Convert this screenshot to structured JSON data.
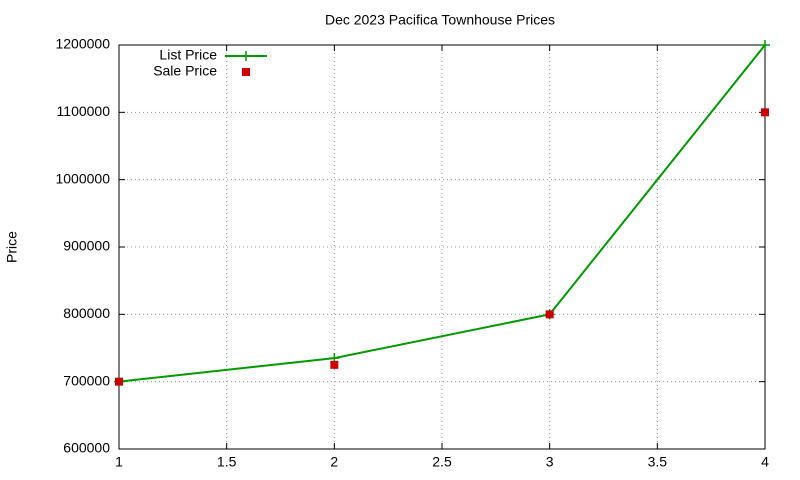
{
  "chart_data": {
    "type": "line",
    "title": "Dec 2023 Pacifica Townhouse Prices",
    "y_label": "Price",
    "x": [
      1,
      2,
      3,
      4
    ],
    "series": [
      {
        "name": "List Price",
        "color": "#009900",
        "values": [
          700000,
          735000,
          800000,
          1200000
        ],
        "line": true,
        "marker": "plus"
      },
      {
        "name": "Sale Price",
        "color": "#cc0000",
        "values": [
          700000,
          725000,
          800000,
          1100000
        ],
        "line": false,
        "marker": "square"
      }
    ],
    "xlim": [
      1,
      4
    ],
    "xticks": [
      1,
      1.5,
      2,
      2.5,
      3,
      3.5,
      4
    ],
    "ylim": [
      600000,
      1200000
    ],
    "yticks": [
      600000,
      700000,
      800000,
      900000,
      1000000,
      1100000,
      1200000
    ],
    "grid": true,
    "legend": "top-left"
  }
}
